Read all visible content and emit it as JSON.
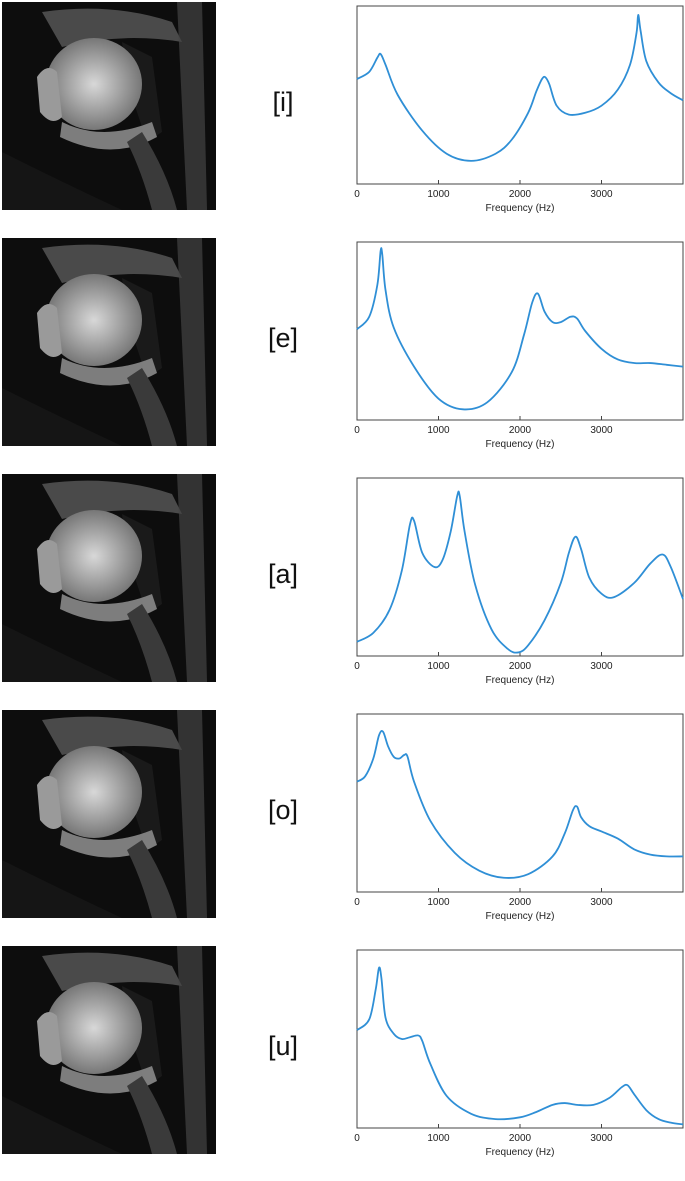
{
  "line_color": "#2f8fd6",
  "panels": [
    {
      "vowel": "[i]",
      "mri_icon": "sagittal-mri-image",
      "chart_data": {
        "type": "line",
        "xlabel": "Frequency (Hz)",
        "ylabel": "",
        "xlim": [
          0,
          4000
        ],
        "ylim": [
          0,
          1
        ],
        "xticks": [
          0,
          1000,
          2000,
          3000
        ],
        "grid": false,
        "series": [
          {
            "x": [
              0,
              150,
              250,
              290,
              350,
              500,
              800,
              1100,
              1400,
              1700,
              1900,
              2100,
              2200,
              2270,
              2310,
              2360,
              2450,
              2600,
              2800,
              3000,
              3200,
              3350,
              3430,
              3450,
              3480,
              3550,
              3700,
              3850,
              4000
            ],
            "y": [
              0.59,
              0.63,
              0.71,
              0.73,
              0.67,
              0.5,
              0.3,
              0.17,
              0.13,
              0.17,
              0.25,
              0.4,
              0.52,
              0.59,
              0.6,
              0.56,
              0.44,
              0.39,
              0.4,
              0.44,
              0.53,
              0.67,
              0.85,
              0.95,
              0.86,
              0.69,
              0.57,
              0.51,
              0.47
            ]
          }
        ]
      }
    },
    {
      "vowel": "[e]",
      "mri_icon": "sagittal-mri-image",
      "chart_data": {
        "type": "line",
        "xlabel": "Frequency (Hz)",
        "ylabel": "",
        "xlim": [
          0,
          4000
        ],
        "ylim": [
          0,
          1
        ],
        "xticks": [
          0,
          1000,
          2000,
          3000
        ],
        "grid": false,
        "series": [
          {
            "x": [
              0,
              150,
              250,
              290,
              310,
              350,
              450,
              700,
              1000,
              1300,
              1600,
              1900,
              2050,
              2150,
              2220,
              2300,
              2400,
              2500,
              2620,
              2700,
              2800,
              3000,
              3200,
              3400,
              3600,
              3800,
              4000
            ],
            "y": [
              0.51,
              0.58,
              0.76,
              0.95,
              0.93,
              0.73,
              0.52,
              0.3,
              0.12,
              0.06,
              0.1,
              0.27,
              0.48,
              0.66,
              0.71,
              0.61,
              0.55,
              0.55,
              0.58,
              0.57,
              0.5,
              0.4,
              0.34,
              0.32,
              0.32,
              0.31,
              0.3
            ]
          }
        ]
      }
    },
    {
      "vowel": "[a]",
      "mri_icon": "sagittal-mri-image",
      "chart_data": {
        "type": "line",
        "xlabel": "Frequency (Hz)",
        "ylabel": "",
        "xlim": [
          0,
          4000
        ],
        "ylim": [
          0,
          1
        ],
        "xticks": [
          0,
          1000,
          2000,
          3000
        ],
        "grid": false,
        "series": [
          {
            "x": [
              0,
              200,
              400,
              550,
              650,
              700,
              800,
              950,
              1050,
              1150,
              1230,
              1260,
              1320,
              1450,
              1650,
              1850,
              1980,
              2100,
              2300,
              2500,
              2600,
              2680,
              2750,
              2850,
              3000,
              3150,
              3400,
              3600,
              3750,
              3850,
              4000
            ],
            "y": [
              0.08,
              0.13,
              0.26,
              0.48,
              0.74,
              0.76,
              0.58,
              0.5,
              0.54,
              0.7,
              0.9,
              0.9,
              0.7,
              0.4,
              0.15,
              0.04,
              0.02,
              0.06,
              0.2,
              0.41,
              0.58,
              0.67,
              0.6,
              0.44,
              0.35,
              0.33,
              0.41,
              0.52,
              0.57,
              0.5,
              0.32
            ]
          }
        ]
      }
    },
    {
      "vowel": "[o]",
      "mri_icon": "sagittal-mri-image",
      "chart_data": {
        "type": "line",
        "xlabel": "Frequency (Hz)",
        "ylabel": "",
        "xlim": [
          0,
          4000
        ],
        "ylim": [
          0,
          1
        ],
        "xticks": [
          0,
          1000,
          2000,
          3000
        ],
        "grid": false,
        "series": [
          {
            "x": [
              0,
              100,
              200,
              270,
              320,
              380,
              450,
              520,
              580,
              620,
              700,
              900,
              1200,
              1500,
              1800,
              2100,
              2400,
              2550,
              2650,
              2700,
              2750,
              2850,
              3000,
              3200,
              3400,
              3600,
              3800,
              4000
            ],
            "y": [
              0.62,
              0.65,
              0.75,
              0.88,
              0.9,
              0.82,
              0.76,
              0.75,
              0.77,
              0.76,
              0.62,
              0.4,
              0.22,
              0.12,
              0.08,
              0.1,
              0.2,
              0.33,
              0.46,
              0.48,
              0.42,
              0.37,
              0.34,
              0.3,
              0.24,
              0.21,
              0.2,
              0.2
            ]
          }
        ]
      }
    },
    {
      "vowel": "[u]",
      "mri_icon": "sagittal-mri-image",
      "chart_data": {
        "type": "line",
        "xlabel": "Frequency (Hz)",
        "ylabel": "",
        "xlim": [
          0,
          4000
        ],
        "ylim": [
          0,
          1
        ],
        "xticks": [
          0,
          1000,
          2000,
          3000
        ],
        "grid": false,
        "series": [
          {
            "x": [
              0,
              150,
              230,
              270,
              300,
              350,
              450,
              550,
              650,
              750,
              800,
              900,
              1100,
              1400,
              1700,
              2000,
              2200,
              2400,
              2550,
              2700,
              2900,
              3100,
              3250,
              3320,
              3400,
              3550,
              3700,
              3850,
              4000
            ],
            "y": [
              0.55,
              0.61,
              0.78,
              0.9,
              0.84,
              0.62,
              0.53,
              0.5,
              0.51,
              0.52,
              0.49,
              0.36,
              0.18,
              0.08,
              0.05,
              0.06,
              0.09,
              0.13,
              0.14,
              0.13,
              0.13,
              0.17,
              0.23,
              0.24,
              0.19,
              0.1,
              0.05,
              0.03,
              0.02
            ]
          }
        ]
      }
    }
  ]
}
